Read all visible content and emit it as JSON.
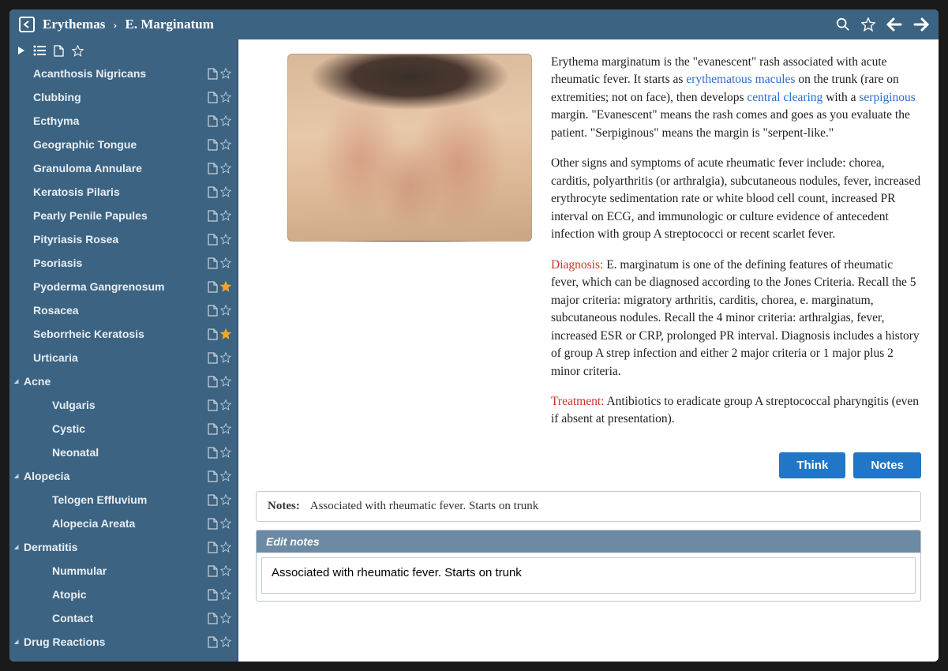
{
  "colors": {
    "header_bg": "#3c6382",
    "link": "#2a6fc9",
    "red_label": "#c8352a",
    "button_bg": "#2176c7",
    "edit_head_bg": "#6c8aa3",
    "star_gold": "#f5a623",
    "star_off": "#c8d4de"
  },
  "breadcrumb": {
    "parent": "Erythemas",
    "current": "E. Marginatum"
  },
  "sidebar": {
    "items": [
      {
        "label": "Acanthosis Nigricans",
        "level": 1,
        "expand": false,
        "starred": false
      },
      {
        "label": "Clubbing",
        "level": 1,
        "expand": false,
        "starred": false
      },
      {
        "label": "Ecthyma",
        "level": 1,
        "expand": false,
        "starred": false
      },
      {
        "label": "Geographic Tongue",
        "level": 1,
        "expand": false,
        "starred": false
      },
      {
        "label": "Granuloma Annulare",
        "level": 1,
        "expand": false,
        "starred": false
      },
      {
        "label": "Keratosis Pilaris",
        "level": 1,
        "expand": false,
        "starred": false
      },
      {
        "label": "Pearly Penile Papules",
        "level": 1,
        "expand": false,
        "starred": false
      },
      {
        "label": "Pityriasis Rosea",
        "level": 1,
        "expand": false,
        "starred": false
      },
      {
        "label": "Psoriasis",
        "level": 1,
        "expand": false,
        "starred": false
      },
      {
        "label": "Pyoderma Gangrenosum",
        "level": 1,
        "expand": false,
        "starred": true
      },
      {
        "label": "Rosacea",
        "level": 1,
        "expand": false,
        "starred": false
      },
      {
        "label": "Seborrheic Keratosis",
        "level": 1,
        "expand": false,
        "starred": true
      },
      {
        "label": "Urticaria",
        "level": 1,
        "expand": false,
        "starred": false
      },
      {
        "label": "Acne",
        "level": 0,
        "expand": true,
        "starred": false
      },
      {
        "label": "Vulgaris",
        "level": 2,
        "expand": false,
        "starred": false
      },
      {
        "label": "Cystic",
        "level": 2,
        "expand": false,
        "starred": false
      },
      {
        "label": "Neonatal",
        "level": 2,
        "expand": false,
        "starred": false
      },
      {
        "label": "Alopecia",
        "level": 0,
        "expand": true,
        "starred": false
      },
      {
        "label": "Telogen Effluvium",
        "level": 2,
        "expand": false,
        "starred": false
      },
      {
        "label": "Alopecia Areata",
        "level": 2,
        "expand": false,
        "starred": false
      },
      {
        "label": "Dermatitis",
        "level": 0,
        "expand": true,
        "starred": false
      },
      {
        "label": "Nummular",
        "level": 2,
        "expand": false,
        "starred": false
      },
      {
        "label": "Atopic",
        "level": 2,
        "expand": false,
        "starred": false
      },
      {
        "label": "Contact",
        "level": 2,
        "expand": false,
        "starred": false
      },
      {
        "label": "Drug Reactions",
        "level": 0,
        "expand": true,
        "starred": false
      }
    ]
  },
  "article": {
    "p1_a": "Erythema marginatum is the \"evanescent\" rash associated with acute rheumatic fever. It starts as ",
    "p1_link1": "erythematous macules",
    "p1_b": " on the trunk (rare on extremities; not on face), then develops ",
    "p1_link2": "central clearing",
    "p1_c": " with a ",
    "p1_link3": "serpiginous",
    "p1_d": " margin. \"Evanescent\" means the rash comes and goes as you evaluate the patient. \"Serpiginous\" means the margin is \"serpent-like.\"",
    "p2": "Other signs and symptoms of acute rheumatic fever include: chorea, carditis, polyarthritis (or arthralgia), subcutaneous nodules, fever, increased erythrocyte sedimentation rate or white blood cell count, increased PR interval on ECG, and immunologic or culture evidence of antecedent infection with group A streptococci or recent scarlet fever.",
    "p3_label": "Diagnosis:",
    "p3_body": " E. marginatum is one of the defining features of rheumatic fever, which can be diagnosed according to the Jones Criteria. Recall the 5 major criteria: migratory arthritis, carditis, chorea, e. marginatum, subcutaneous nodules. Recall the 4 minor criteria: arthralgias, fever, increased ESR or CRP, prolonged PR interval. Diagnosis includes a history of group A strep infection and either 2 major criteria or 1 major plus 2 minor criteria.",
    "p4_label": "Treatment:",
    "p4_body": " Antibiotics to eradicate group A streptococcal pharyngitis (even if absent at presentation)."
  },
  "buttons": {
    "think": "Think",
    "notes": "Notes"
  },
  "notes": {
    "label": "Notes:",
    "value": "Associated with rheumatic fever. Starts on trunk",
    "edit_header": "Edit notes",
    "edit_value": "Associated with rheumatic fever. Starts on trunk"
  }
}
